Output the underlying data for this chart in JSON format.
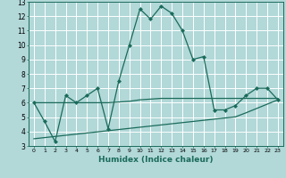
{
  "xlabel": "Humidex (Indice chaleur)",
  "x": [
    0,
    1,
    2,
    3,
    4,
    5,
    6,
    7,
    8,
    9,
    10,
    11,
    12,
    13,
    14,
    15,
    16,
    17,
    18,
    19,
    20,
    21,
    22,
    23
  ],
  "line1": [
    6.0,
    4.7,
    3.3,
    6.5,
    6.0,
    6.5,
    7.0,
    4.2,
    7.5,
    10.0,
    12.5,
    11.8,
    12.7,
    12.2,
    11.0,
    9.0,
    9.2,
    5.5,
    5.5,
    5.8,
    6.5,
    7.0,
    7.0,
    6.2
  ],
  "line2": [
    3.5,
    3.58,
    3.66,
    3.74,
    3.82,
    3.9,
    3.98,
    4.06,
    4.14,
    4.22,
    4.3,
    4.38,
    4.46,
    4.54,
    4.62,
    4.7,
    4.78,
    4.86,
    4.94,
    5.02,
    5.3,
    5.6,
    5.9,
    6.2
  ],
  "line3": [
    6.0,
    6.0,
    6.0,
    6.0,
    6.0,
    6.0,
    6.0,
    6.0,
    6.05,
    6.1,
    6.2,
    6.25,
    6.3,
    6.3,
    6.3,
    6.3,
    6.3,
    6.3,
    6.3,
    6.3,
    6.3,
    6.3,
    6.3,
    6.3
  ],
  "color": "#1a6b5a",
  "bg_color": "#b2d8d8",
  "grid_color": "#c8e8e0",
  "ylim": [
    3,
    13
  ],
  "yticks": [
    3,
    4,
    5,
    6,
    7,
    8,
    9,
    10,
    11,
    12,
    13
  ],
  "xticks": [
    0,
    1,
    2,
    3,
    4,
    5,
    6,
    7,
    8,
    9,
    10,
    11,
    12,
    13,
    14,
    15,
    16,
    17,
    18,
    19,
    20,
    21,
    22,
    23
  ],
  "marker": "D",
  "markersize": 2.0,
  "linewidth": 0.9
}
